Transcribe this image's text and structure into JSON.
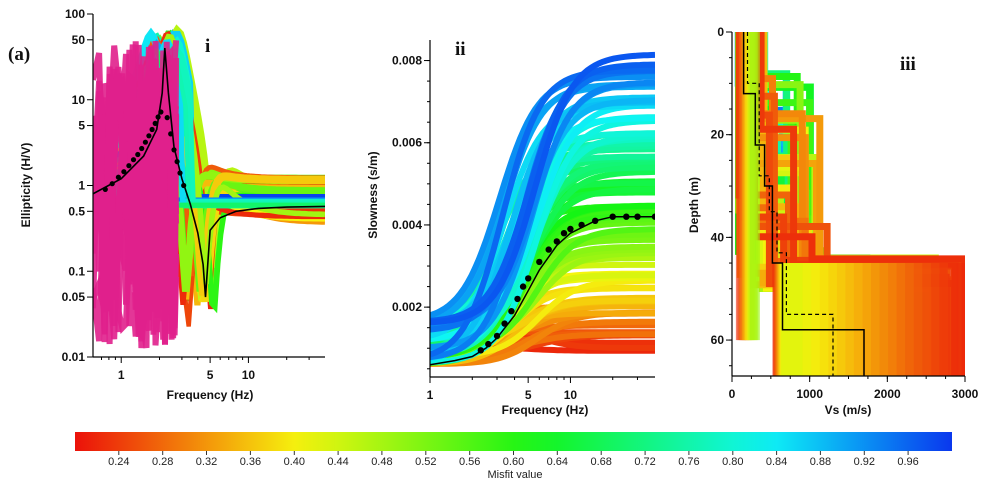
{
  "figure": {
    "label": "(a)",
    "colors": {
      "low_misfit": "#e8201a",
      "mid_misfit": "#20c030",
      "high_misfit": "#1030e0",
      "outlier": "#e0208c",
      "target": "#000000"
    }
  },
  "colorbar": {
    "label": "Misfit value",
    "range": [
      0.2,
      1.0
    ],
    "ticks": [
      "0.24",
      "0.28",
      "0.32",
      "0.36",
      "0.40",
      "0.44",
      "0.48",
      "0.52",
      "0.56",
      "0.60",
      "0.64",
      "0.68",
      "0.72",
      "0.76",
      "0.80",
      "0.84",
      "0.88",
      "0.92",
      "0.96"
    ]
  },
  "chart_data": [
    {
      "panel": "i",
      "type": "line",
      "xlabel": "Frequency (Hz)",
      "ylabel": "Ellipticity (H/V)",
      "xscale": "log",
      "yscale": "log",
      "xlim": [
        0.6,
        40
      ],
      "ylim": [
        0.01,
        100
      ],
      "xticks": [
        "1",
        "5",
        "10"
      ],
      "yticks": [
        "0.01",
        "0.05",
        "0.1",
        "0.5",
        "1",
        "5",
        "10",
        "50",
        "100"
      ],
      "series": [
        {
          "role": "best-fit",
          "x": [
            0.6,
            1.0,
            1.5,
            1.9,
            2.1,
            2.2,
            2.35,
            2.6,
            3.0,
            3.5,
            4.0,
            4.4,
            4.6,
            5.0,
            6.0,
            8.0,
            12,
            20,
            40
          ],
          "y": [
            0.8,
            1.2,
            2.2,
            4.5,
            12,
            40,
            12,
            2.8,
            1.2,
            0.6,
            0.28,
            0.12,
            0.05,
            0.3,
            0.42,
            0.5,
            0.54,
            0.56,
            0.57
          ]
        },
        {
          "role": "observed",
          "x": [
            0.75,
            0.85,
            0.95,
            1.05,
            1.15,
            1.25,
            1.35,
            1.45,
            1.55,
            1.65,
            1.75,
            1.85,
            1.95,
            2.05,
            2.3,
            2.45,
            2.6,
            2.75,
            2.9,
            3.1
          ],
          "y": [
            0.9,
            1.05,
            1.25,
            1.45,
            1.7,
            2.0,
            2.3,
            2.7,
            3.2,
            3.8,
            4.5,
            5.3,
            6.3,
            7.2,
            6.2,
            4.0,
            2.6,
            1.9,
            1.4,
            1.0
          ]
        }
      ]
    },
    {
      "panel": "ii",
      "type": "line",
      "xlabel": "Frequency (Hz)",
      "ylabel": "Slowness (s/m)",
      "xscale": "log",
      "xlim": [
        1,
        40
      ],
      "ylim": [
        0.0003,
        0.0085
      ],
      "xticks": [
        "1",
        "5",
        "10"
      ],
      "yticks": [
        "0.002",
        "0.004",
        "0.006",
        "0.008"
      ],
      "series": [
        {
          "role": "best-fit",
          "x": [
            1,
            1.5,
            2,
            2.5,
            3,
            4,
            5,
            6,
            8,
            10,
            15,
            20,
            30,
            40
          ],
          "y": [
            0.0006,
            0.0007,
            0.0008,
            0.001,
            0.00125,
            0.0018,
            0.0024,
            0.0029,
            0.0035,
            0.0038,
            0.0041,
            0.0042,
            0.0042,
            0.0042
          ]
        },
        {
          "role": "observed",
          "x": [
            2.3,
            2.6,
            3.0,
            3.4,
            3.8,
            4.2,
            4.6,
            5.0,
            6,
            7,
            8,
            9,
            10,
            12,
            15,
            20,
            25,
            30,
            40
          ],
          "y": [
            0.00095,
            0.0011,
            0.0013,
            0.0016,
            0.0019,
            0.0022,
            0.0025,
            0.0027,
            0.0031,
            0.0034,
            0.0036,
            0.0038,
            0.0039,
            0.004,
            0.0041,
            0.0042,
            0.0042,
            0.0042,
            0.0042
          ]
        }
      ]
    },
    {
      "panel": "iii",
      "type": "line",
      "xlabel": "Vs (m/s)",
      "ylabel": "Depth (m)",
      "xlim": [
        0,
        3000
      ],
      "ylim": [
        0,
        67
      ],
      "y_inverted": true,
      "xticks": [
        "0",
        "1000",
        "2000",
        "3000"
      ],
      "yticks": [
        "0",
        "20",
        "40",
        "60"
      ],
      "series": [
        {
          "role": "best-fit",
          "vs": [
            150,
            150,
            300,
            300,
            420,
            420,
            520,
            520,
            650,
            650,
            1700,
            1700
          ],
          "depth": [
            0,
            12,
            12,
            22,
            22,
            30,
            30,
            45,
            45,
            58,
            58,
            67
          ]
        },
        {
          "role": "reference",
          "vs": [
            200,
            200,
            350,
            350,
            480,
            480,
            580,
            580,
            700,
            700,
            1300,
            1300
          ],
          "depth": [
            0,
            10,
            10,
            28,
            28,
            35,
            35,
            43,
            43,
            55,
            55,
            67
          ]
        }
      ]
    }
  ]
}
